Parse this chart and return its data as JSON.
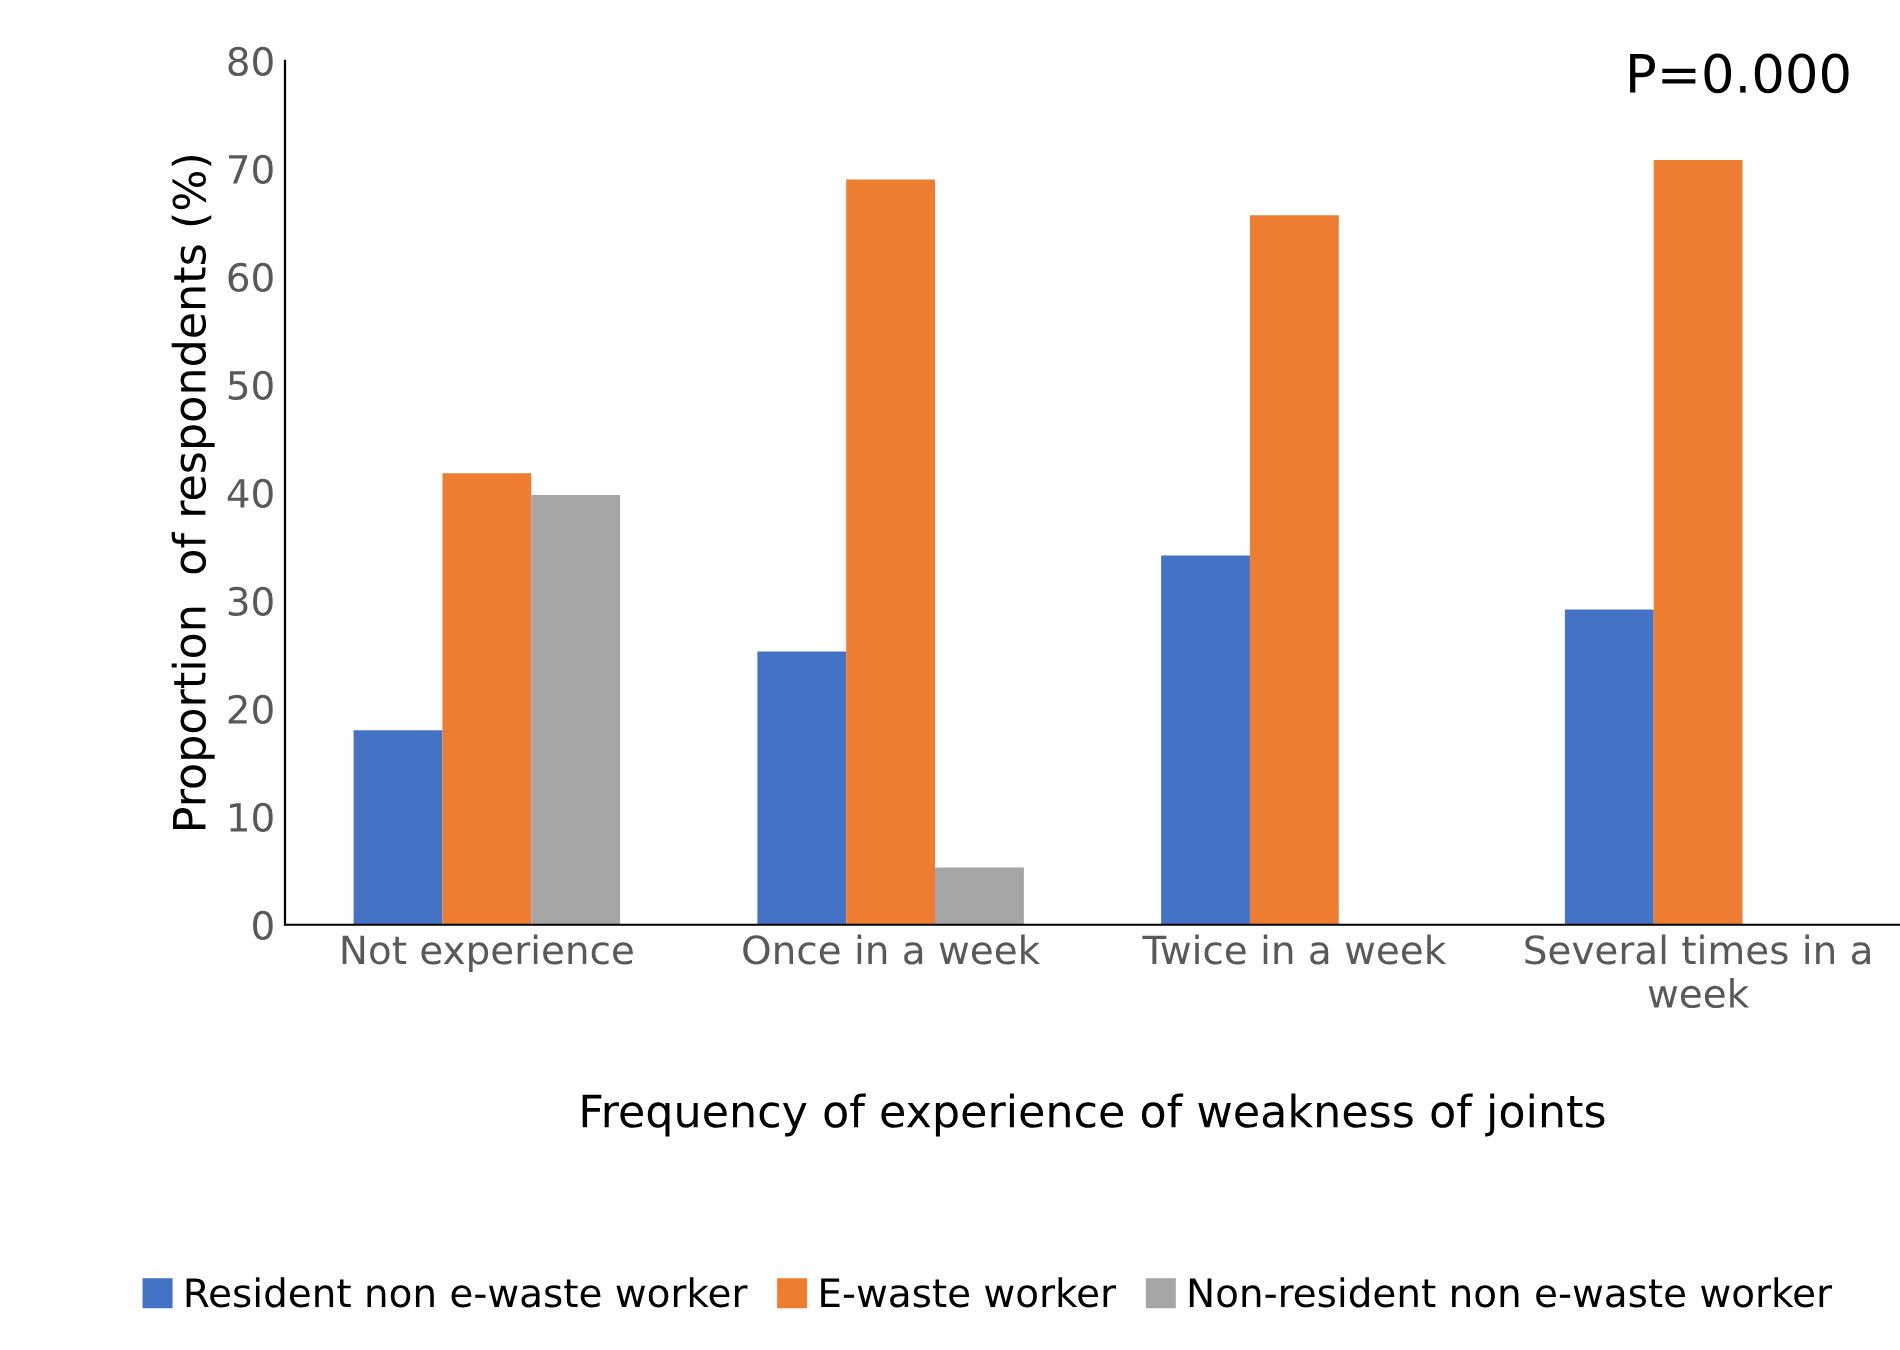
{
  "chart_data": {
    "type": "bar",
    "xlabel": "Frequency of experience of weakness of joints",
    "ylabel": "Proportion  of respondents (%)",
    "categories": [
      "Not experience",
      "Once in a week",
      "Twice in a week",
      "Several times in a week"
    ],
    "series": [
      {
        "name": "Resident non e-waste worker",
        "color": "#4472c4",
        "values": [
          18.0,
          25.3,
          34.2,
          29.2
        ]
      },
      {
        "name": "E-waste worker",
        "color": "#ed7d31",
        "values": [
          41.8,
          69.0,
          65.7,
          70.8
        ]
      },
      {
        "name": "Non-resident non e-waste worker",
        "color": "#a5a5a5",
        "values": [
          39.8,
          5.3,
          null,
          null
        ]
      }
    ],
    "ylim": [
      0,
      80
    ],
    "yticks": [
      0,
      10,
      20,
      30,
      40,
      50,
      60,
      70,
      80
    ],
    "grid": false,
    "legend": "bottom",
    "annotations": [
      "P=0.000"
    ]
  }
}
